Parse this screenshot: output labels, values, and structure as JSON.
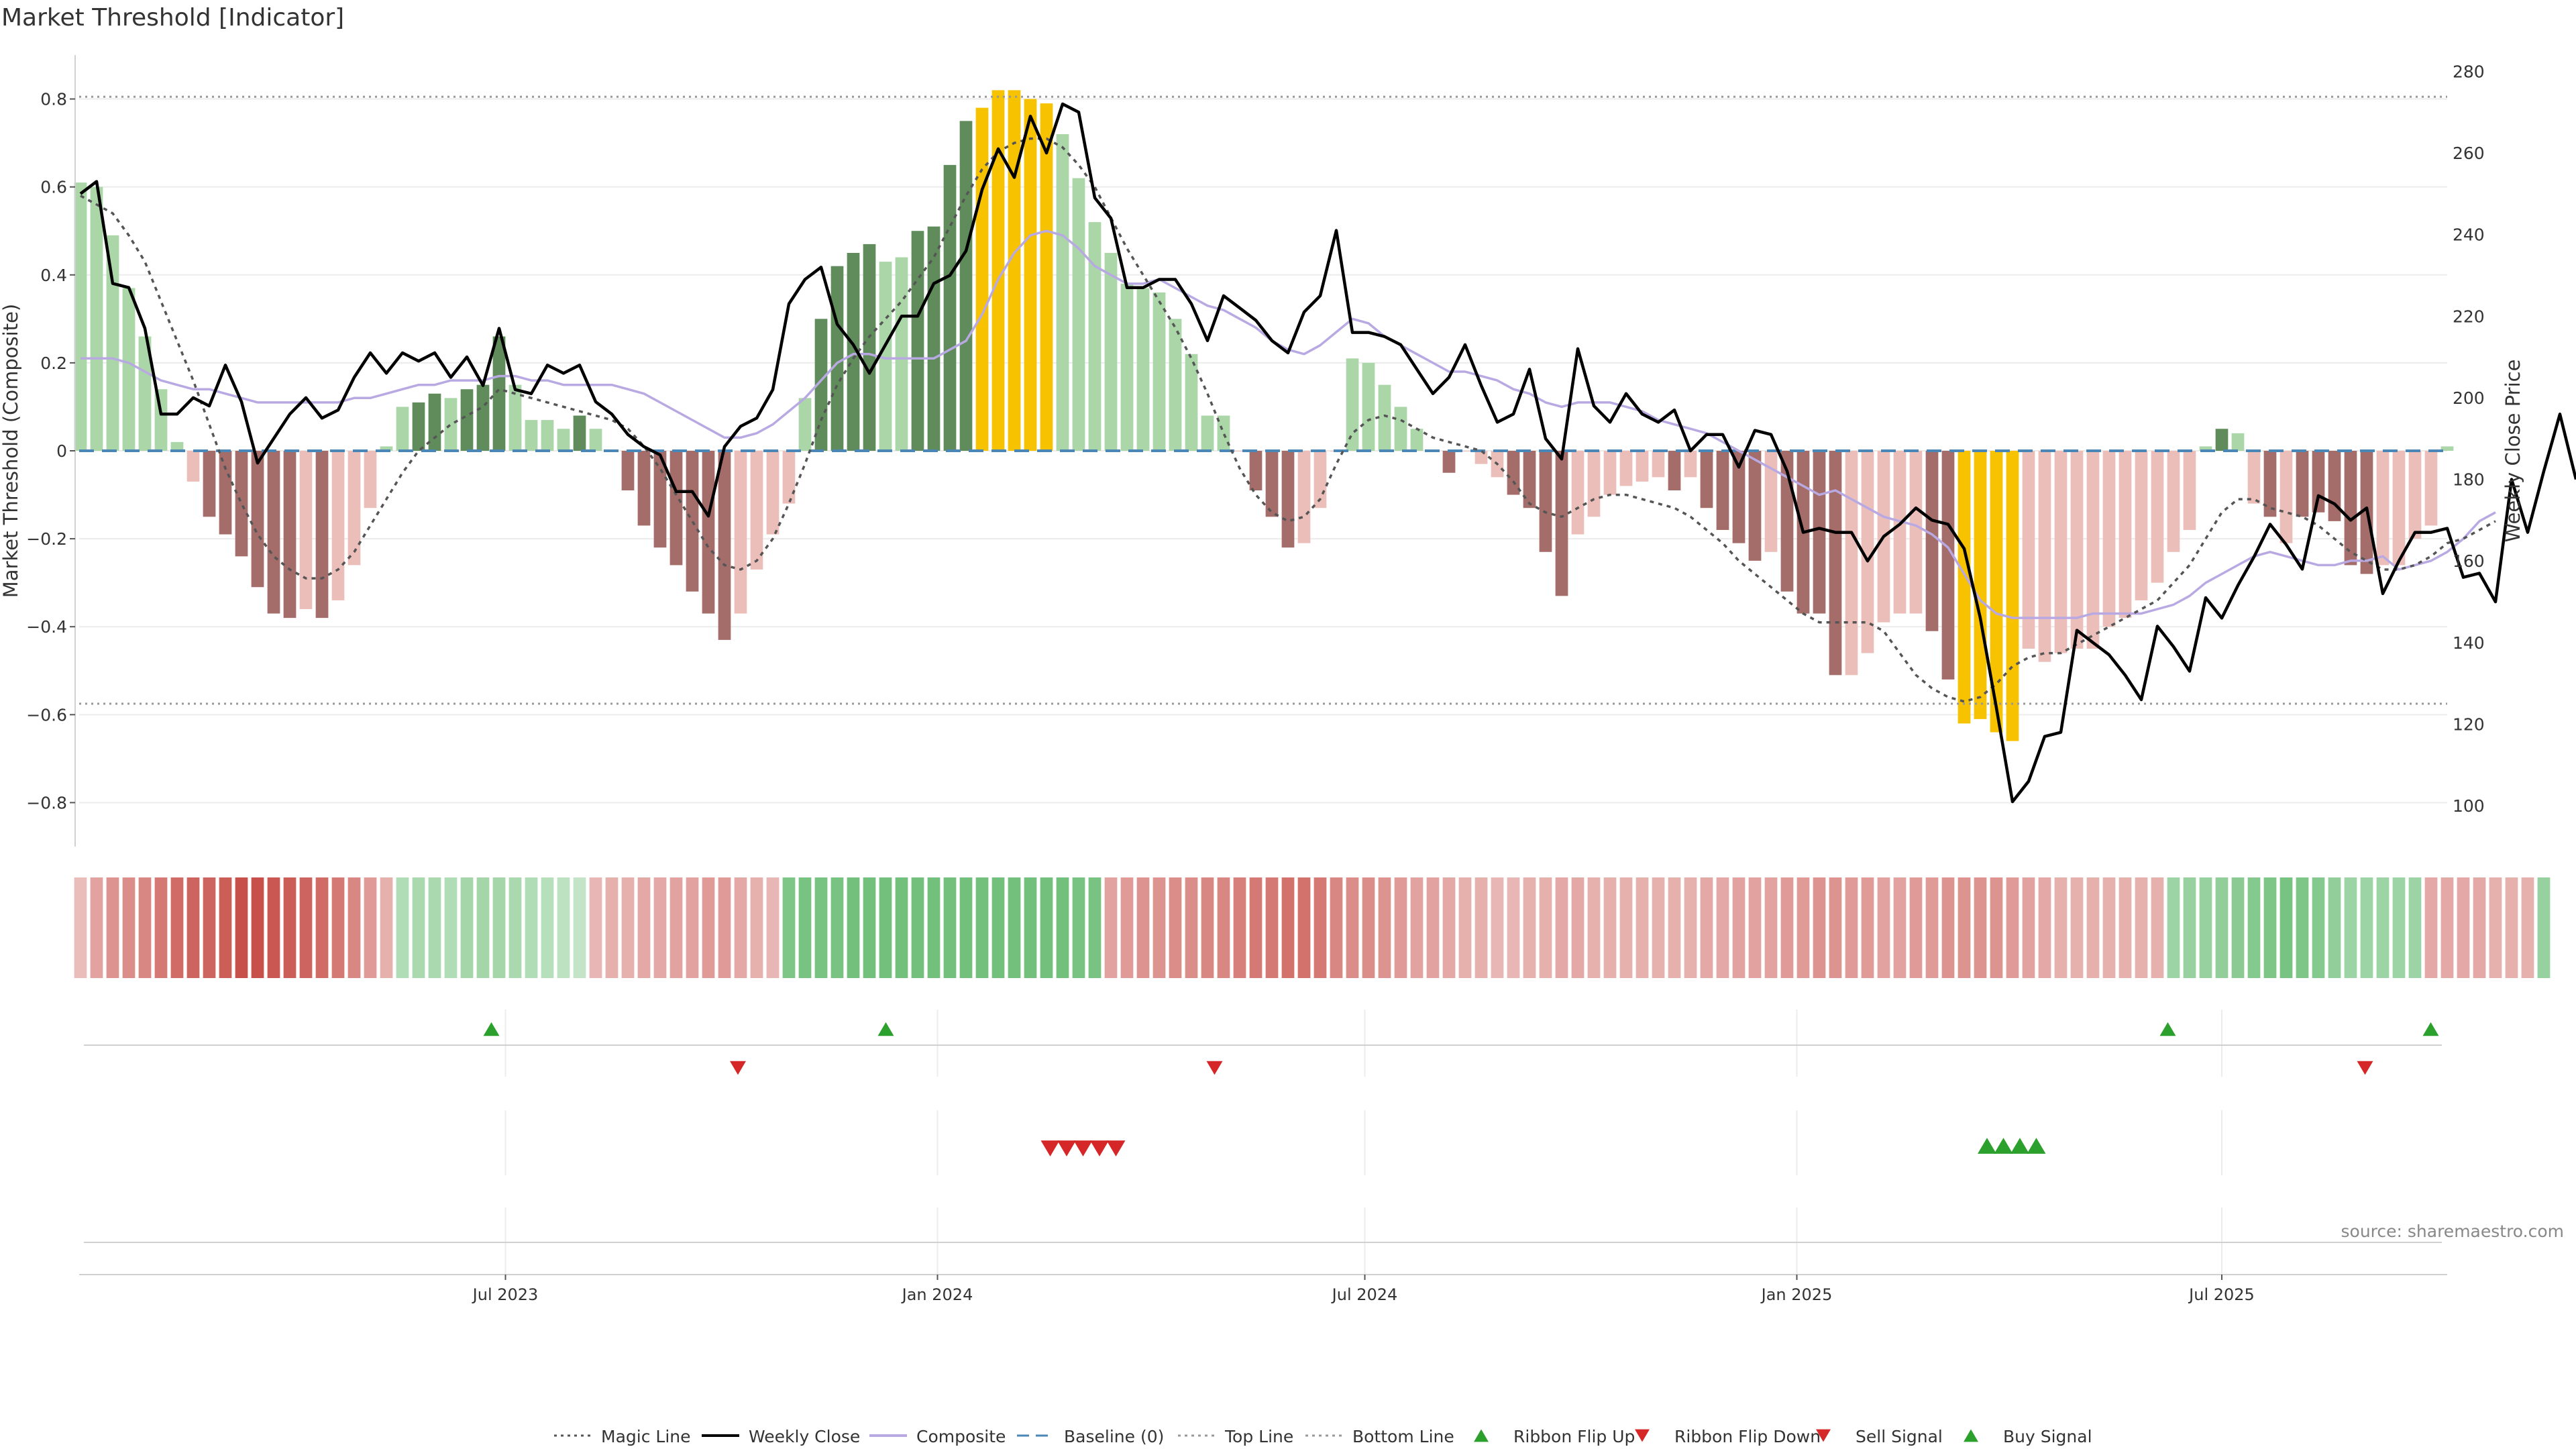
{
  "title": "Market Threshold [Indicator]",
  "source": "source: sharemaestro.com",
  "colors": {
    "strong_up": "#5f8c5a",
    "weak_up": "#aad6a8",
    "strong_down": "#a46d6a",
    "weak_down": "#ecbeb9",
    "extreme": "#f7c200",
    "magic": "#555555",
    "price": "#000000",
    "composite": "#b9a9e3",
    "baseline": "#4a86b6",
    "guide": "#999999",
    "ribbon_up": "#5fb86b",
    "ribbon_down": "#c8504a",
    "marker_up": "#2ca02c",
    "marker_down": "#d62728"
  },
  "legend": [
    {
      "label": "Magic Line",
      "kind": "dotted",
      "color": "#555555"
    },
    {
      "label": "Weekly Close",
      "kind": "solid",
      "color": "#000000"
    },
    {
      "label": "Composite",
      "kind": "solid",
      "color": "#b9a9e3"
    },
    {
      "label": "Baseline (0)",
      "kind": "dashed",
      "color": "#4a86b6"
    },
    {
      "label": "Top Line",
      "kind": "dotted",
      "color": "#999999"
    },
    {
      "label": "Bottom Line",
      "kind": "dotted",
      "color": "#999999"
    },
    {
      "label": "Ribbon Flip Up",
      "kind": "tri-up",
      "color": "#2ca02c"
    },
    {
      "label": "Ribbon Flip Down",
      "kind": "tri-down",
      "color": "#d62728"
    },
    {
      "label": "Sell Signal",
      "kind": "tri-down",
      "color": "#d62728"
    },
    {
      "label": "Buy Signal",
      "kind": "tri-up",
      "color": "#2ca02c"
    }
  ],
  "chart_data": {
    "type": "bar",
    "ylabel_left": "Market Threshold (Composite)",
    "ylabel_right": "Weekly Close Price",
    "ylim_left": [
      -0.9,
      0.9
    ],
    "ylim_right": [
      90,
      284
    ],
    "yticks_left": [
      "0.8",
      "0.6",
      "0.4",
      "0.2",
      "0",
      "−0.2",
      "−0.4",
      "−0.6",
      "−0.8"
    ],
    "yticks_left_values": [
      0.8,
      0.6,
      0.4,
      0.2,
      0,
      -0.2,
      -0.4,
      -0.6,
      -0.8
    ],
    "yticks_right": [
      "280",
      "260",
      "240",
      "220",
      "200",
      "180",
      "160",
      "140",
      "120",
      "100"
    ],
    "yticks_right_values": [
      280,
      260,
      240,
      220,
      200,
      180,
      160,
      140,
      120,
      100
    ],
    "top_line": 0.805,
    "bottom_line": -0.575,
    "baseline": 0,
    "x_start": "2023-01-01",
    "x_end": "2025-10-05",
    "xticks": [
      {
        "label": "Jul 2023",
        "date": "2023-07-01"
      },
      {
        "label": "Jan 2024",
        "date": "2024-01-01"
      },
      {
        "label": "Jul 2024",
        "date": "2024-07-01"
      },
      {
        "label": "Jan 2025",
        "date": "2025-01-01"
      },
      {
        "label": "Jul 2025",
        "date": "2025-07-01"
      }
    ],
    "grid": true,
    "legend_position": "bottom",
    "bars": [
      0.61,
      0.6,
      0.49,
      0.37,
      0.26,
      0.14,
      0.02,
      -0.07,
      -0.15,
      -0.19,
      -0.24,
      -0.31,
      -0.37,
      -0.38,
      -0.36,
      -0.38,
      -0.34,
      -0.26,
      -0.13,
      0.01,
      0.1,
      0.11,
      0.13,
      0.12,
      0.14,
      0.15,
      0.26,
      0.15,
      0.07,
      0.07,
      0.05,
      0.08,
      0.05,
      0,
      -0.09,
      -0.17,
      -0.22,
      -0.26,
      -0.32,
      -0.37,
      -0.43,
      -0.37,
      -0.27,
      -0.19,
      -0.12,
      0.12,
      0.3,
      0.42,
      0.45,
      0.47,
      0.43,
      0.44,
      0.5,
      0.51,
      0.65,
      0.75,
      0.78,
      0.82,
      0.82,
      0.8,
      0.79,
      0.72,
      0.62,
      0.52,
      0.45,
      0.38,
      0.37,
      0.36,
      0.3,
      0.22,
      0.08,
      0.08,
      0,
      -0.09,
      -0.15,
      -0.22,
      -0.21,
      -0.13,
      0,
      0.21,
      0.2,
      0.15,
      0.1,
      0.05,
      0,
      -0.05,
      0,
      -0.03,
      -0.06,
      -0.1,
      -0.13,
      -0.23,
      -0.33,
      -0.19,
      -0.15,
      -0.1,
      -0.08,
      -0.07,
      -0.06,
      -0.09,
      -0.06,
      -0.13,
      -0.18,
      -0.21,
      -0.25,
      -0.23,
      -0.32,
      -0.37,
      -0.37,
      -0.51,
      -0.51,
      -0.46,
      -0.39,
      -0.37,
      -0.37,
      -0.41,
      -0.52,
      -0.62,
      -0.61,
      -0.64,
      -0.66,
      -0.45,
      -0.48,
      -0.46,
      -0.45,
      -0.45,
      -0.4,
      -0.38,
      -0.34,
      -0.3,
      -0.23,
      -0.18,
      0.01,
      0.05,
      0.04,
      -0.12,
      -0.15,
      -0.21,
      -0.15,
      -0.14,
      -0.16,
      -0.26,
      -0.28,
      -0.26,
      -0.26,
      -0.2,
      -0.17,
      0.01
    ],
    "bar_classes": [
      "weak_up",
      "weak_up",
      "weak_up",
      "weak_up",
      "weak_up",
      "weak_up",
      "weak_up",
      "weak_down",
      "strong_down",
      "strong_down",
      "strong_down",
      "strong_down",
      "strong_down",
      "strong_down",
      "weak_down",
      "strong_down",
      "weak_down",
      "weak_down",
      "weak_down",
      "weak_up",
      "weak_up",
      "strong_up",
      "strong_up",
      "weak_up",
      "strong_up",
      "strong_up",
      "strong_up",
      "weak_up",
      "weak_up",
      "weak_up",
      "weak_up",
      "strong_up",
      "weak_up",
      "weak_down",
      "strong_down",
      "strong_down",
      "strong_down",
      "strong_down",
      "strong_down",
      "strong_down",
      "strong_down",
      "weak_down",
      "weak_down",
      "weak_down",
      "weak_down",
      "weak_up",
      "strong_up",
      "strong_up",
      "strong_up",
      "strong_up",
      "weak_up",
      "weak_up",
      "strong_up",
      "strong_up",
      "strong_up",
      "strong_up",
      "extreme",
      "extreme",
      "extreme",
      "extreme",
      "extreme",
      "weak_up",
      "weak_up",
      "weak_up",
      "weak_up",
      "weak_up",
      "weak_up",
      "weak_up",
      "weak_up",
      "weak_up",
      "weak_up",
      "weak_up",
      "weak_down",
      "strong_down",
      "strong_down",
      "strong_down",
      "weak_down",
      "weak_down",
      "weak_down",
      "weak_up",
      "weak_up",
      "weak_up",
      "weak_up",
      "weak_up",
      "weak_down",
      "strong_down",
      "weak_down",
      "weak_down",
      "weak_down",
      "strong_down",
      "strong_down",
      "strong_down",
      "strong_down",
      "weak_down",
      "weak_down",
      "weak_down",
      "weak_down",
      "weak_down",
      "weak_down",
      "strong_down",
      "weak_down",
      "strong_down",
      "strong_down",
      "strong_down",
      "strong_down",
      "weak_down",
      "strong_down",
      "strong_down",
      "strong_down",
      "strong_down",
      "weak_down",
      "weak_down",
      "weak_down",
      "weak_down",
      "weak_down",
      "strong_down",
      "strong_down",
      "extreme",
      "extreme",
      "extreme",
      "extreme",
      "weak_down",
      "weak_down",
      "weak_down",
      "weak_down",
      "weak_down",
      "weak_down",
      "weak_down",
      "weak_down",
      "weak_down",
      "weak_down",
      "weak_down",
      "weak_up",
      "strong_up",
      "weak_up",
      "weak_down",
      "strong_down",
      "weak_down",
      "strong_down",
      "strong_down",
      "strong_down",
      "strong_down",
      "strong_down",
      "weak_down",
      "weak_down",
      "weak_down",
      "weak_down",
      "weak_up"
    ],
    "series": [
      {
        "name": "Weekly Close",
        "axis": "right",
        "values": [
          250,
          253,
          228,
          227,
          217,
          196,
          196,
          200,
          198,
          208,
          199,
          184,
          190,
          196,
          200,
          195,
          197,
          205,
          211,
          206,
          211,
          209,
          211,
          205,
          210,
          203,
          217,
          202,
          201,
          208,
          206,
          208,
          199,
          196,
          191,
          188,
          186,
          177,
          177,
          171,
          188,
          193,
          195,
          202,
          223,
          229,
          232,
          218,
          213,
          206,
          213,
          220,
          220,
          228,
          230,
          236,
          251,
          261,
          254,
          269,
          260,
          272,
          270,
          249,
          244,
          227,
          227,
          229,
          229,
          223,
          214,
          225,
          222,
          219,
          214,
          211,
          221,
          225,
          241,
          216,
          216,
          215,
          213,
          207,
          201,
          205,
          213,
          203,
          194,
          196,
          207,
          190,
          185,
          212,
          198,
          194,
          201,
          196,
          194,
          197,
          187,
          191,
          191,
          183,
          192,
          191,
          182,
          167,
          168,
          167,
          167,
          160,
          166,
          169,
          173,
          170,
          169,
          163,
          146,
          124,
          101,
          106,
          117,
          118,
          143,
          140,
          137,
          132,
          126,
          144,
          139,
          133,
          151,
          146,
          154,
          161,
          169,
          164,
          158,
          176,
          174,
          170,
          173,
          152,
          160,
          167,
          167,
          168,
          156,
          157,
          150,
          180,
          167,
          182,
          196,
          180
        ]
      },
      {
        "name": "Composite",
        "axis": "left",
        "values": [
          0.21,
          0.21,
          0.21,
          0.2,
          0.18,
          0.16,
          0.15,
          0.14,
          0.14,
          0.13,
          0.12,
          0.11,
          0.11,
          0.11,
          0.11,
          0.11,
          0.11,
          0.12,
          0.12,
          0.13,
          0.14,
          0.15,
          0.15,
          0.16,
          0.16,
          0.16,
          0.17,
          0.17,
          0.16,
          0.16,
          0.15,
          0.15,
          0.15,
          0.15,
          0.14,
          0.13,
          0.11,
          0.09,
          0.07,
          0.05,
          0.03,
          0.03,
          0.04,
          0.06,
          0.09,
          0.12,
          0.16,
          0.2,
          0.22,
          0.22,
          0.21,
          0.21,
          0.21,
          0.21,
          0.23,
          0.25,
          0.31,
          0.39,
          0.45,
          0.49,
          0.5,
          0.49,
          0.46,
          0.42,
          0.4,
          0.38,
          0.38,
          0.39,
          0.37,
          0.35,
          0.33,
          0.32,
          0.3,
          0.28,
          0.25,
          0.23,
          0.22,
          0.24,
          0.27,
          0.3,
          0.29,
          0.26,
          0.24,
          0.22,
          0.2,
          0.18,
          0.18,
          0.17,
          0.16,
          0.14,
          0.13,
          0.11,
          0.1,
          0.11,
          0.11,
          0.11,
          0.1,
          0.09,
          0.07,
          0.06,
          0.05,
          0.04,
          0.02,
          0.0,
          -0.02,
          -0.04,
          -0.06,
          -0.08,
          -0.1,
          -0.09,
          -0.11,
          -0.13,
          -0.15,
          -0.16,
          -0.17,
          -0.19,
          -0.22,
          -0.28,
          -0.34,
          -0.37,
          -0.38,
          -0.38,
          -0.38,
          -0.38,
          -0.38,
          -0.37,
          -0.37,
          -0.37,
          -0.37,
          -0.36,
          -0.35,
          -0.33,
          -0.3,
          -0.28,
          -0.26,
          -0.24,
          -0.23,
          -0.24,
          -0.25,
          -0.26,
          -0.26,
          -0.25,
          -0.25,
          -0.24,
          -0.27,
          -0.26,
          -0.25,
          -0.23,
          -0.2,
          -0.16,
          -0.14
        ]
      },
      {
        "name": "Magic Line",
        "axis": "left",
        "values": [
          0.58,
          0.56,
          0.54,
          0.49,
          0.43,
          0.34,
          0.25,
          0.16,
          0.06,
          -0.04,
          -0.12,
          -0.19,
          -0.24,
          -0.27,
          -0.29,
          -0.29,
          -0.27,
          -0.23,
          -0.17,
          -0.11,
          -0.05,
          0.0,
          0.03,
          0.06,
          0.08,
          0.1,
          0.14,
          0.13,
          0.12,
          0.11,
          0.1,
          0.09,
          0.08,
          0.07,
          0.05,
          0.01,
          -0.04,
          -0.1,
          -0.16,
          -0.22,
          -0.26,
          -0.27,
          -0.25,
          -0.2,
          -0.12,
          -0.03,
          0.07,
          0.15,
          0.21,
          0.26,
          0.3,
          0.34,
          0.39,
          0.44,
          0.51,
          0.58,
          0.64,
          0.68,
          0.7,
          0.71,
          0.71,
          0.69,
          0.65,
          0.6,
          0.53,
          0.46,
          0.4,
          0.34,
          0.28,
          0.21,
          0.13,
          0.04,
          -0.04,
          -0.1,
          -0.14,
          -0.16,
          -0.15,
          -0.11,
          -0.03,
          0.04,
          0.07,
          0.08,
          0.07,
          0.05,
          0.03,
          0.02,
          0.01,
          0.0,
          -0.03,
          -0.07,
          -0.12,
          -0.14,
          -0.15,
          -0.13,
          -0.11,
          -0.1,
          -0.1,
          -0.11,
          -0.12,
          -0.13,
          -0.15,
          -0.18,
          -0.21,
          -0.25,
          -0.28,
          -0.31,
          -0.34,
          -0.37,
          -0.39,
          -0.39,
          -0.39,
          -0.39,
          -0.41,
          -0.46,
          -0.51,
          -0.54,
          -0.56,
          -0.57,
          -0.56,
          -0.53,
          -0.49,
          -0.47,
          -0.46,
          -0.46,
          -0.44,
          -0.42,
          -0.4,
          -0.38,
          -0.36,
          -0.34,
          -0.3,
          -0.26,
          -0.2,
          -0.14,
          -0.11,
          -0.11,
          -0.13,
          -0.14,
          -0.15,
          -0.17,
          -0.2,
          -0.23,
          -0.25,
          -0.27,
          -0.27,
          -0.26,
          -0.24,
          -0.21,
          -0.2,
          -0.18,
          -0.16
        ]
      }
    ],
    "ribbon_values": [
      -0.2,
      -0.4,
      -0.5,
      -0.55,
      -0.6,
      -0.7,
      -0.8,
      -0.85,
      -0.85,
      -0.9,
      -1.0,
      -1.0,
      -0.95,
      -0.9,
      -0.85,
      -0.8,
      -0.7,
      -0.6,
      -0.45,
      -0.3,
      0.35,
      0.4,
      0.4,
      0.35,
      0.45,
      0.45,
      0.45,
      0.4,
      0.35,
      0.3,
      0.25,
      0.2,
      -0.25,
      -0.3,
      -0.3,
      -0.35,
      -0.35,
      -0.4,
      -0.4,
      -0.45,
      -0.45,
      -0.35,
      -0.3,
      -0.25,
      0.75,
      0.8,
      0.8,
      0.8,
      0.85,
      0.85,
      0.85,
      0.85,
      0.85,
      0.85,
      0.85,
      0.85,
      0.85,
      0.85,
      0.85,
      0.85,
      0.85,
      0.85,
      0.8,
      0.8,
      -0.4,
      -0.45,
      -0.5,
      -0.5,
      -0.55,
      -0.55,
      -0.6,
      -0.6,
      -0.65,
      -0.7,
      -0.7,
      -0.75,
      -0.75,
      -0.7,
      -0.6,
      -0.55,
      -0.55,
      -0.5,
      -0.45,
      -0.4,
      -0.4,
      -0.35,
      -0.3,
      -0.3,
      -0.25,
      -0.25,
      -0.3,
      -0.3,
      -0.35,
      -0.35,
      -0.3,
      -0.3,
      -0.3,
      -0.3,
      -0.3,
      -0.3,
      -0.3,
      -0.35,
      -0.35,
      -0.4,
      -0.4,
      -0.4,
      -0.45,
      -0.45,
      -0.5,
      -0.5,
      -0.45,
      -0.45,
      -0.4,
      -0.4,
      -0.45,
      -0.45,
      -0.5,
      -0.5,
      -0.5,
      -0.5,
      -0.45,
      -0.4,
      -0.35,
      -0.3,
      -0.3,
      -0.3,
      -0.3,
      -0.3,
      -0.3,
      -0.3,
      0.5,
      0.55,
      0.55,
      0.6,
      0.65,
      0.7,
      0.75,
      0.8,
      0.75,
      0.7,
      0.6,
      0.5,
      0.5,
      0.5,
      0.5,
      0.5,
      -0.35,
      -0.35,
      -0.35,
      -0.35,
      -0.3,
      -0.3,
      -0.3,
      0.55
    ],
    "ribbon_flip_up": [
      "2023-06-25",
      "2023-12-10",
      "2025-06-08",
      "2025-09-28"
    ],
    "ribbon_flip_down": [
      "2023-10-08",
      "2024-04-28",
      "2025-08-31"
    ],
    "sell_signals": [
      "2024-02-18",
      "2024-02-25",
      "2024-03-03",
      "2024-03-10",
      "2024-03-17"
    ],
    "buy_signals": [
      "2025-03-23",
      "2025-03-30",
      "2025-04-06",
      "2025-04-13"
    ]
  }
}
